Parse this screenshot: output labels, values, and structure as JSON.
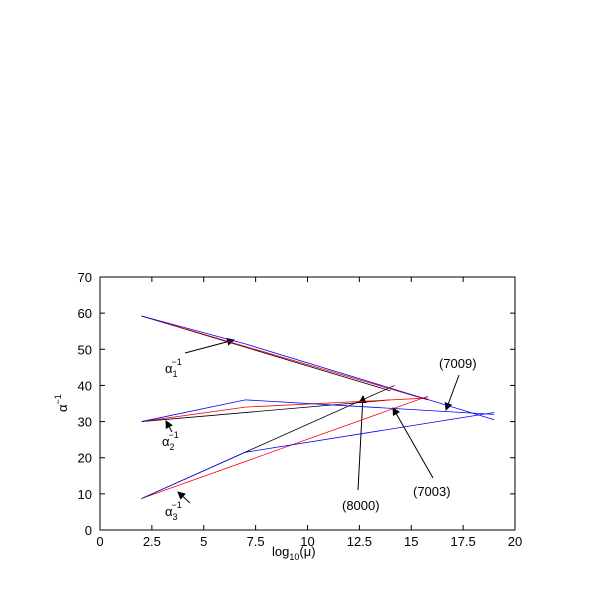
{
  "chart_data": {
    "type": "line",
    "xlabel": {
      "text": "log",
      "sub": "10",
      "tail": "(μ)"
    },
    "ylabel": {
      "text": "α",
      "sup": "−1"
    },
    "xlim": [
      0,
      20
    ],
    "xticks": [
      0,
      2.5,
      5,
      7.5,
      10,
      12.5,
      15,
      17.5,
      20
    ],
    "ylim": [
      0,
      70
    ],
    "yticks": [
      0,
      10,
      20,
      30,
      40,
      50,
      60,
      70
    ],
    "series": [
      {
        "color": "#000000",
        "x": [
          2,
          14
        ],
        "values": [
          59.2,
          38.5
        ]
      },
      {
        "color": "#000000",
        "x": [
          2,
          14
        ],
        "values": [
          30,
          36
        ]
      },
      {
        "color": "#000000",
        "x": [
          2,
          14.2
        ],
        "values": [
          8.7,
          40
        ]
      },
      {
        "color": "#ff0000",
        "x": [
          2,
          15.8
        ],
        "values": [
          59.2,
          36
        ]
      },
      {
        "color": "#ff0000",
        "x": [
          2,
          7,
          15.8
        ],
        "values": [
          30,
          34,
          36.5
        ]
      },
      {
        "color": "#ff0000",
        "x": [
          2,
          15.8
        ],
        "values": [
          8.7,
          37
        ]
      },
      {
        "color": "#0000ff",
        "x": [
          2,
          7,
          19
        ],
        "values": [
          59.2,
          51.5,
          30.5
        ]
      },
      {
        "color": "#0000ff",
        "x": [
          2,
          7,
          19
        ],
        "values": [
          30,
          36,
          32
        ]
      },
      {
        "color": "#0000ff",
        "x": [
          2,
          7,
          19
        ],
        "values": [
          8.7,
          21.5,
          32.5
        ]
      }
    ],
    "annotations": [
      {
        "text": "α",
        "sub": "1",
        "sup": "−1"
      },
      {
        "text": "α",
        "sub": "2",
        "sup": "−1"
      },
      {
        "text": "α",
        "sub": "3",
        "sup": "−1"
      },
      {
        "text": "(8000)"
      },
      {
        "text": "(7003)"
      },
      {
        "text": "(7009)"
      }
    ]
  }
}
